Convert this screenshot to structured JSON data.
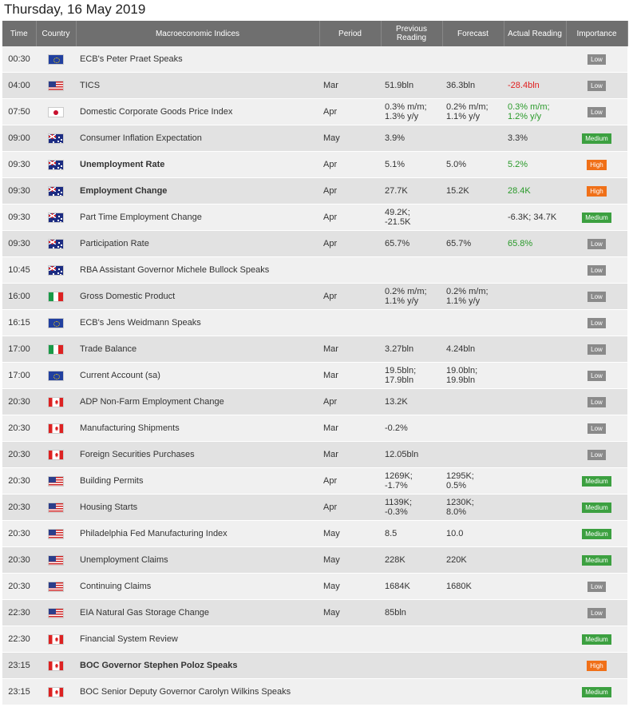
{
  "page_title": "Thursday, 16 May 2019",
  "headers": {
    "time": "Time",
    "country": "Country",
    "indices": "Macroeconomic Indices",
    "period": "Period",
    "previous": "Previous Reading",
    "forecast": "Forecast",
    "actual": "Actual Reading",
    "importance": "Importance"
  },
  "rows": [
    {
      "time": "00:30",
      "country": "eu",
      "flag_icon": "eu-flag-icon",
      "name": "ECB's Peter Praet Speaks",
      "bold": false,
      "period": "",
      "previous": "",
      "forecast": "",
      "actual": "",
      "actual_tone": "",
      "importance": "Low"
    },
    {
      "time": "04:00",
      "country": "us",
      "flag_icon": "us-flag-icon",
      "name": "TICS",
      "bold": false,
      "period": "Mar",
      "previous": "51.9bln",
      "forecast": "36.3bln",
      "actual": "-28.4bln",
      "actual_tone": "neg",
      "importance": "Low"
    },
    {
      "time": "07:50",
      "country": "jp",
      "flag_icon": "jp-flag-icon",
      "name": "Domestic Corporate Goods Price Index",
      "bold": false,
      "period": "Apr",
      "previous": "0.3% m/m;\n1.3% y/y",
      "forecast": "0.2% m/m;\n1.1% y/y",
      "actual": "0.3% m/m;\n1.2% y/y",
      "actual_tone": "pos",
      "importance": "Low"
    },
    {
      "time": "09:00",
      "country": "au",
      "flag_icon": "au-flag-icon",
      "name": "Consumer Inflation Expectation",
      "bold": false,
      "period": "May",
      "previous": "3.9%",
      "forecast": "",
      "actual": "3.3%",
      "actual_tone": "",
      "importance": "Medium"
    },
    {
      "time": "09:30",
      "country": "au",
      "flag_icon": "au-flag-icon",
      "name": "Unemployment Rate",
      "bold": true,
      "period": "Apr",
      "previous": "5.1%",
      "forecast": "5.0%",
      "actual": "5.2%",
      "actual_tone": "pos",
      "importance": "High"
    },
    {
      "time": "09:30",
      "country": "au",
      "flag_icon": "au-flag-icon",
      "name": "Employment Change",
      "bold": true,
      "period": "Apr",
      "previous": "27.7K",
      "forecast": "15.2K",
      "actual": "28.4K",
      "actual_tone": "pos",
      "importance": "High"
    },
    {
      "time": "09:30",
      "country": "au",
      "flag_icon": "au-flag-icon",
      "name": "Part Time Employment Change",
      "bold": false,
      "period": "Apr",
      "previous": "49.2K;\n-21.5K",
      "forecast": "",
      "actual": "-6.3K; 34.7K",
      "actual_tone": "",
      "importance": "Medium"
    },
    {
      "time": "09:30",
      "country": "au",
      "flag_icon": "au-flag-icon",
      "name": "Participation Rate",
      "bold": false,
      "period": "Apr",
      "previous": "65.7%",
      "forecast": "65.7%",
      "actual": "65.8%",
      "actual_tone": "pos",
      "importance": "Low"
    },
    {
      "time": "10:45",
      "country": "au",
      "flag_icon": "au-flag-icon",
      "name": "RBA Assistant Governor Michele Bullock Speaks",
      "bold": false,
      "period": "",
      "previous": "",
      "forecast": "",
      "actual": "",
      "actual_tone": "",
      "importance": "Low"
    },
    {
      "time": "16:00",
      "country": "it",
      "flag_icon": "it-flag-icon",
      "name": "Gross Domestic Product",
      "bold": false,
      "period": "Apr",
      "previous": "0.2% m/m;\n1.1% y/y",
      "forecast": "0.2% m/m;\n1.1% y/y",
      "actual": "",
      "actual_tone": "",
      "importance": "Low"
    },
    {
      "time": "16:15",
      "country": "eu",
      "flag_icon": "eu-flag-icon",
      "name": "ECB's Jens Weidmann Speaks",
      "bold": false,
      "period": "",
      "previous": "",
      "forecast": "",
      "actual": "",
      "actual_tone": "",
      "importance": "Low"
    },
    {
      "time": "17:00",
      "country": "it",
      "flag_icon": "it-flag-icon",
      "name": "Trade Balance",
      "bold": false,
      "period": "Mar",
      "previous": "3.27bln",
      "forecast": "4.24bln",
      "actual": "",
      "actual_tone": "",
      "importance": "Low"
    },
    {
      "time": "17:00",
      "country": "eu",
      "flag_icon": "eu-flag-icon",
      "name": "Current Account (sa)",
      "bold": false,
      "period": "Mar",
      "previous": "19.5bln;\n17.9bln",
      "forecast": "19.0bln;\n19.9bln",
      "actual": "",
      "actual_tone": "",
      "importance": "Low"
    },
    {
      "time": "20:30",
      "country": "ca",
      "flag_icon": "ca-flag-icon",
      "name": "ADP Non-Farm Employment Change",
      "bold": false,
      "period": "Apr",
      "previous": "13.2K",
      "forecast": "",
      "actual": "",
      "actual_tone": "",
      "importance": "Low"
    },
    {
      "time": "20:30",
      "country": "ca",
      "flag_icon": "ca-flag-icon",
      "name": "Manufacturing Shipments",
      "bold": false,
      "period": "Mar",
      "previous": "-0.2%",
      "forecast": "",
      "actual": "",
      "actual_tone": "",
      "importance": "Low"
    },
    {
      "time": "20:30",
      "country": "ca",
      "flag_icon": "ca-flag-icon",
      "name": "Foreign Securities Purchases",
      "bold": false,
      "period": "Mar",
      "previous": "12.05bln",
      "forecast": "",
      "actual": "",
      "actual_tone": "",
      "importance": "Low"
    },
    {
      "time": "20:30",
      "country": "us",
      "flag_icon": "us-flag-icon",
      "name": "Building Permits",
      "bold": false,
      "period": "Apr",
      "previous": "1269K;\n-1.7%",
      "forecast": "1295K;\n0.5%",
      "actual": "",
      "actual_tone": "",
      "importance": "Medium"
    },
    {
      "time": "20:30",
      "country": "us",
      "flag_icon": "us-flag-icon",
      "name": "Housing Starts",
      "bold": false,
      "period": "Apr",
      "previous": "1139K;\n-0.3%",
      "forecast": "1230K;\n8.0%",
      "actual": "",
      "actual_tone": "",
      "importance": "Medium"
    },
    {
      "time": "20:30",
      "country": "us",
      "flag_icon": "us-flag-icon",
      "name": "Philadelphia Fed Manufacturing Index",
      "bold": false,
      "period": "May",
      "previous": "8.5",
      "forecast": "10.0",
      "actual": "",
      "actual_tone": "",
      "importance": "Medium"
    },
    {
      "time": "20:30",
      "country": "us",
      "flag_icon": "us-flag-icon",
      "name": "Unemployment Claims",
      "bold": false,
      "period": "May",
      "previous": "228K",
      "forecast": "220K",
      "actual": "",
      "actual_tone": "",
      "importance": "Medium"
    },
    {
      "time": "20:30",
      "country": "us",
      "flag_icon": "us-flag-icon",
      "name": "Continuing Claims",
      "bold": false,
      "period": "May",
      "previous": "1684K",
      "forecast": "1680K",
      "actual": "",
      "actual_tone": "",
      "importance": "Low"
    },
    {
      "time": "22:30",
      "country": "us",
      "flag_icon": "us-flag-icon",
      "name": "EIA Natural Gas Storage Change",
      "bold": false,
      "period": "May",
      "previous": "85bln",
      "forecast": "",
      "actual": "",
      "actual_tone": "",
      "importance": "Low"
    },
    {
      "time": "22:30",
      "country": "ca",
      "flag_icon": "ca-flag-icon",
      "name": "Financial System Review",
      "bold": false,
      "period": "",
      "previous": "",
      "forecast": "",
      "actual": "",
      "actual_tone": "",
      "importance": "Medium"
    },
    {
      "time": "23:15",
      "country": "ca",
      "flag_icon": "ca-flag-icon",
      "name": "BOC Governor Stephen Poloz Speaks",
      "bold": true,
      "period": "",
      "previous": "",
      "forecast": "",
      "actual": "",
      "actual_tone": "",
      "importance": "High"
    },
    {
      "time": "23:15",
      "country": "ca",
      "flag_icon": "ca-flag-icon",
      "name": "BOC Senior Deputy Governor Carolyn Wilkins Speaks",
      "bold": false,
      "period": "",
      "previous": "",
      "forecast": "",
      "actual": "",
      "actual_tone": "",
      "importance": "Medium"
    }
  ]
}
